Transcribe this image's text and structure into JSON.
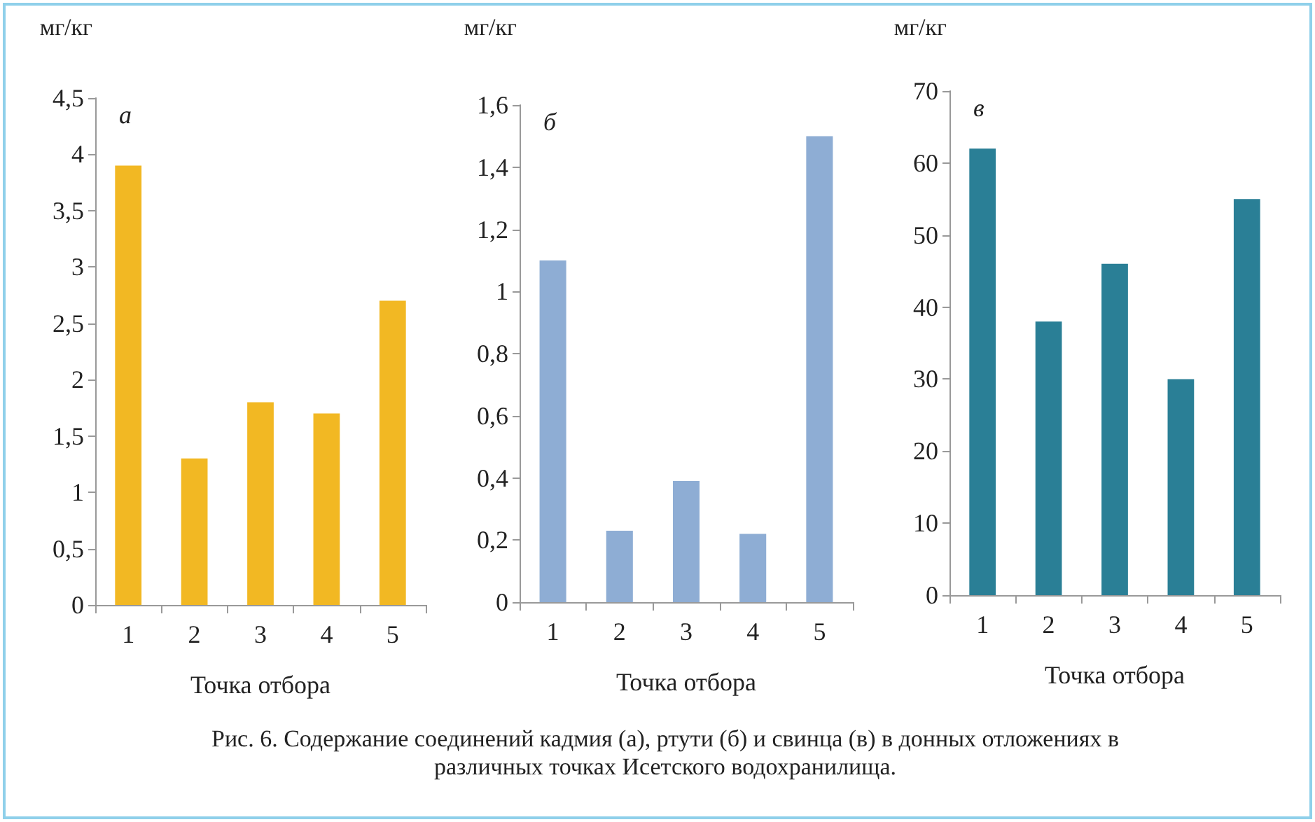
{
  "chart_data": [
    {
      "type": "bar",
      "title": "а",
      "ylabel": "мг/кг",
      "xlabel": "Точка отбора",
      "categories": [
        "1",
        "2",
        "3",
        "4",
        "5"
      ],
      "values": [
        3.9,
        1.3,
        1.8,
        1.7,
        2.7
      ],
      "color": "#f2b823",
      "ylim": [
        0,
        4.5
      ],
      "yticks": [
        0,
        {
          "value": 0.5,
          "label": "0,5"
        },
        1,
        {
          "value": 1.5,
          "label": "1,5"
        },
        2,
        {
          "value": 2.5,
          "label": "2,5"
        },
        3,
        {
          "value": 3.5,
          "label": "3,5"
        },
        4,
        {
          "value": 4.5,
          "label": "4,5"
        }
      ],
      "grid": false,
      "annotations": [
        "Рис. 6. Содержание соединений кадмия (а), ртути (б) и свинца (в) в донных отложениях в различных точках Исетского водохранилища."
      ]
    },
    {
      "type": "bar",
      "title": "б",
      "ylabel": "мг/кг",
      "xlabel": "Точка отбора",
      "categories": [
        "1",
        "2",
        "3",
        "4",
        "5"
      ],
      "values": [
        1.1,
        0.23,
        0.39,
        0.22,
        1.5
      ],
      "color": "#8eadd4",
      "ylim": [
        0,
        1.6
      ],
      "yticks": [
        0,
        {
          "value": 0.2,
          "label": "0,2"
        },
        {
          "value": 0.4,
          "label": "0,4"
        },
        {
          "value": 0.6,
          "label": "0,6"
        },
        {
          "value": 0.8,
          "label": "0,8"
        },
        1,
        {
          "value": 1.2,
          "label": "1,2"
        },
        {
          "value": 1.4,
          "label": "1,4"
        },
        {
          "value": 1.6,
          "label": "1,6"
        }
      ],
      "grid": false
    },
    {
      "type": "bar",
      "title": "в",
      "ylabel": "мг/кг",
      "xlabel": "Точка отбора",
      "categories": [
        "1",
        "2",
        "3",
        "4",
        "5"
      ],
      "values": [
        62,
        38,
        46,
        30,
        55
      ],
      "color": "#2a7f96",
      "ylim": [
        0,
        70
      ],
      "yticks": [
        0,
        10,
        20,
        30,
        40,
        50,
        60,
        70
      ],
      "grid": false
    }
  ]
}
